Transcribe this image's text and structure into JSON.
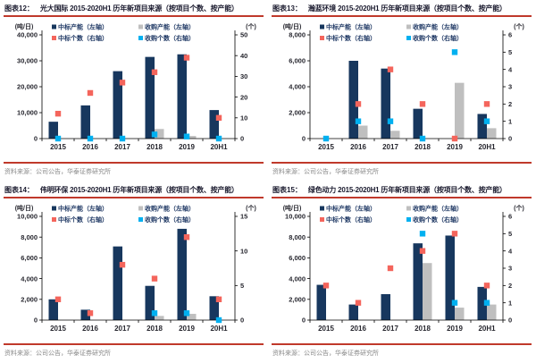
{
  "theme": {
    "accent_rule_red": "#C0392B",
    "bar_navy": "#17375E",
    "bar_gray": "#BFBFBF",
    "marker_red": "#F4655C",
    "marker_cyan": "#00B0F0",
    "legend_text_navy": "#1F3864",
    "source_text_gray": "#8A8A8A"
  },
  "chart_data": [
    {
      "type": "bar",
      "figure_label": "图表12：",
      "title": "光大国际 2015-2020H1 历年新项目来源（按项目个数、按产能）",
      "categories": [
        "2015",
        "2016",
        "2017",
        "2018",
        "2019",
        "20H1"
      ],
      "left_axis": {
        "unit": "(吨/日)",
        "min": 0,
        "max": 40000,
        "step": 10000
      },
      "right_axis": {
        "unit": "(个)",
        "min": 0,
        "max": 50,
        "step": 10
      },
      "grid": "off",
      "legend_position": "top",
      "series": [
        {
          "name": "中标产能（左轴）",
          "kind": "bar",
          "axis": "left",
          "color": "#17375E",
          "values": [
            6500,
            12800,
            26000,
            31500,
            32500,
            11000
          ]
        },
        {
          "name": "收购产能（左轴）",
          "kind": "bar",
          "axis": "left",
          "color": "#BFBFBF",
          "values": [
            0,
            0,
            0,
            3700,
            1000,
            0
          ]
        },
        {
          "name": "中标个数（右轴）",
          "kind": "scatter",
          "axis": "right",
          "color": "#F4655C",
          "values": [
            12,
            22,
            27,
            32,
            39,
            10
          ]
        },
        {
          "name": "收购个数（右轴）",
          "kind": "scatter",
          "axis": "right",
          "color": "#00B0F0",
          "values": [
            0,
            0,
            0,
            2,
            1,
            0
          ]
        }
      ],
      "source": "资料来源：公司公告，华泰证券研究所"
    },
    {
      "type": "bar",
      "figure_label": "图表13：",
      "title": "瀚蓝环境 2015-2020H1 历年新项目来源（按项目个数、按产能）",
      "categories": [
        "2015",
        "2016",
        "2017",
        "2018",
        "2019",
        "20H1"
      ],
      "left_axis": {
        "unit": "(吨/日)",
        "min": 0,
        "max": 8000,
        "step": 2000
      },
      "right_axis": {
        "unit": "(个)",
        "min": 0,
        "max": 6,
        "step": 1
      },
      "grid": "off",
      "legend_position": "top",
      "series": [
        {
          "name": "中标产能（左轴）",
          "kind": "bar",
          "axis": "left",
          "color": "#17375E",
          "values": [
            0,
            6000,
            5400,
            2300,
            0,
            1900
          ]
        },
        {
          "name": "收购产能（左轴）",
          "kind": "bar",
          "axis": "left",
          "color": "#BFBFBF",
          "values": [
            0,
            1000,
            600,
            0,
            4300,
            800
          ]
        },
        {
          "name": "中标个数（右轴）",
          "kind": "scatter",
          "axis": "right",
          "color": "#F4655C",
          "values": [
            null,
            2,
            4,
            2,
            0,
            2
          ]
        },
        {
          "name": "收购个数（右轴）",
          "kind": "scatter",
          "axis": "right",
          "color": "#00B0F0",
          "values": [
            0,
            1,
            1,
            0,
            5,
            1
          ]
        }
      ],
      "source": "资料来源：公司公告，华泰证券研究所"
    },
    {
      "type": "bar",
      "figure_label": "图表14：",
      "title": "伟明环保 2015-2020H1 历年新项目来源（按项目个数、按产能）",
      "categories": [
        "2015",
        "2016",
        "2017",
        "2018",
        "2019",
        "20H1"
      ],
      "left_axis": {
        "unit": "(吨/日)",
        "min": 0,
        "max": 10000,
        "step": 2000
      },
      "right_axis": {
        "unit": "(个)",
        "min": 0,
        "max": 15,
        "step": 5
      },
      "grid": "off",
      "legend_position": "top",
      "series": [
        {
          "name": "中标产能（左轴）",
          "kind": "bar",
          "axis": "left",
          "color": "#17375E",
          "values": [
            2000,
            1000,
            7100,
            3300,
            8800,
            2300
          ]
        },
        {
          "name": "收购产能（左轴）",
          "kind": "bar",
          "axis": "left",
          "color": "#BFBFBF",
          "values": [
            0,
            0,
            0,
            400,
            600,
            0
          ]
        },
        {
          "name": "中标个数（右轴）",
          "kind": "scatter",
          "axis": "right",
          "color": "#F4655C",
          "values": [
            3,
            1,
            8,
            6,
            12,
            3
          ]
        },
        {
          "name": "收购个数（右轴）",
          "kind": "scatter",
          "axis": "right",
          "color": "#00B0F0",
          "values": [
            null,
            null,
            null,
            1,
            1,
            0
          ]
        }
      ],
      "source": "资料来源：公司公告，华泰证券研究所"
    },
    {
      "type": "bar",
      "figure_label": "图表15：",
      "title": "绿色动力 2015-2020H1 历年新项目来源（按项目个数、按产能）",
      "categories": [
        "2015",
        "2016",
        "2017",
        "2018",
        "2019",
        "20H1"
      ],
      "left_axis": {
        "unit": "(吨/日)",
        "min": 0,
        "max": 10000,
        "step": 2000
      },
      "right_axis": {
        "unit": "(个)",
        "min": 0,
        "max": 6,
        "step": 1
      },
      "grid": "off",
      "legend_position": "top",
      "series": [
        {
          "name": "中标产能（左轴）",
          "kind": "bar",
          "axis": "left",
          "color": "#17375E",
          "values": [
            3400,
            1500,
            2500,
            7400,
            8150,
            3200
          ]
        },
        {
          "name": "收购产能（左轴）",
          "kind": "bar",
          "axis": "left",
          "color": "#BFBFBF",
          "values": [
            0,
            0,
            0,
            5500,
            1200,
            1500
          ]
        },
        {
          "name": "中标个数（右轴）",
          "kind": "scatter",
          "axis": "right",
          "color": "#F4655C",
          "values": [
            2,
            1,
            3,
            4,
            5,
            2
          ]
        },
        {
          "name": "收购个数（右轴）",
          "kind": "scatter",
          "axis": "right",
          "color": "#00B0F0",
          "values": [
            null,
            null,
            null,
            5,
            1,
            1
          ]
        }
      ],
      "source": "资料来源：公司公告，华泰证券研究所"
    }
  ]
}
